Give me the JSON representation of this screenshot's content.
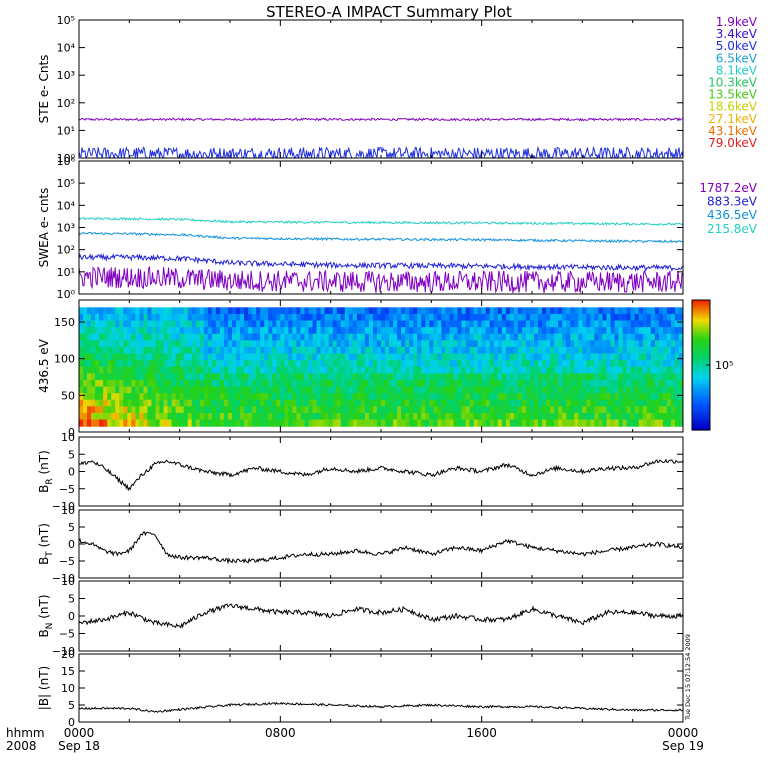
{
  "chart_data": {
    "type": "multi-panel",
    "title": "STEREO-A IMPACT Summary Plot",
    "x_axis": {
      "tick_labels": [
        "0000",
        "0800",
        "1600",
        "0000"
      ],
      "tick_hours": [
        0,
        8,
        16,
        24
      ],
      "date_labels": [
        "Sep 18",
        "",
        "",
        "Sep 19"
      ],
      "corner_labels": [
        "hhmm",
        "2008"
      ],
      "range_hours": [
        0,
        24
      ]
    },
    "timestamp": "Tue Dec 15 07:12:54 2009",
    "panels": [
      {
        "id": "ste",
        "ylabel": "STE e- Cnts",
        "scale": "log",
        "ylim": [
          1,
          100000
        ],
        "yticks": [
          1,
          10,
          100,
          1000,
          10000,
          100000
        ],
        "ytick_labels": [
          "10⁰",
          "10¹",
          "10²",
          "10³",
          "10⁴",
          "10⁵"
        ],
        "legend": [
          {
            "label": "1.9keV",
            "color": "#8000c0"
          },
          {
            "label": "3.4keV",
            "color": "#3b10d0"
          },
          {
            "label": "5.0keV",
            "color": "#2030e0"
          },
          {
            "label": "6.5keV",
            "color": "#1aa0dc"
          },
          {
            "label": "8.1keV",
            "color": "#20d0c8"
          },
          {
            "label": "10.3keV",
            "color": "#20c860"
          },
          {
            "label": "13.5keV",
            "color": "#48c818"
          },
          {
            "label": "18.6keV",
            "color": "#c8d000"
          },
          {
            "label": "27.1keV",
            "color": "#f0b000"
          },
          {
            "label": "43.1keV",
            "color": "#f07000"
          },
          {
            "label": "79.0keV",
            "color": "#e02020"
          }
        ],
        "series": [
          {
            "name": "1.9keV",
            "color": "#8000c0",
            "base": 25,
            "noise": 0.04
          },
          {
            "name": "3.4keV",
            "color": "#2030e0",
            "base": 1.4,
            "noise": 0.25
          }
        ]
      },
      {
        "id": "swea",
        "ylabel": "SWEA e- cnts",
        "scale": "log",
        "ylim": [
          1,
          1000000
        ],
        "yticks": [
          1,
          10,
          100,
          1000,
          10000,
          100000,
          1000000
        ],
        "ytick_labels": [
          "10⁰",
          "10¹",
          "10²",
          "10³",
          "10⁴",
          "10⁵",
          "10⁶"
        ],
        "legend": [
          {
            "label": "1787.2eV",
            "color": "#8000c0"
          },
          {
            "label": "883.3eV",
            "color": "#2020d8"
          },
          {
            "label": "436.5eV",
            "color": "#1090dc"
          },
          {
            "label": "215.8eV",
            "color": "#20d0c0"
          }
        ],
        "series": [
          {
            "name": "215.8eV",
            "color": "#20d0c0",
            "x": [
              0,
              2,
              4,
              6,
              10,
              16,
              20,
              24
            ],
            "y": [
              2500,
              2500,
              2300,
              1800,
              1700,
              1600,
              1500,
              1400
            ],
            "noise": 0.05
          },
          {
            "name": "436.5eV",
            "color": "#1090dc",
            "x": [
              0,
              2,
              4,
              6,
              10,
              16,
              20,
              24
            ],
            "y": [
              550,
              520,
              470,
              330,
              300,
              280,
              250,
              230
            ],
            "noise": 0.05
          },
          {
            "name": "883.3eV",
            "color": "#2020d8",
            "x": [
              0,
              2,
              4,
              6,
              10,
              16,
              20,
              24
            ],
            "y": [
              45,
              45,
              40,
              25,
              20,
              18,
              16,
              15
            ],
            "noise": 0.12
          },
          {
            "name": "1787.2eV",
            "color": "#8000c0",
            "x": [
              0,
              3,
              6,
              12,
              24
            ],
            "y": [
              6,
              5.5,
              4,
              3.5,
              3.5
            ],
            "noise": 0.5
          }
        ]
      },
      {
        "id": "pad",
        "ylabel": "436.5 eV",
        "type": "heatmap",
        "ylim": [
          0,
          180
        ],
        "yticks": [
          0,
          50,
          100,
          150
        ],
        "ytick_labels": [
          "0",
          "50",
          "100",
          "150"
        ],
        "colorbar_label": "10⁵",
        "colorbar_label_fraction": 0.5
      },
      {
        "id": "br",
        "ylabel": "B_R (nT)",
        "ylim": [
          -10,
          10
        ],
        "yticks": [
          -10,
          -5,
          0,
          5,
          10
        ],
        "ytick_labels": [
          "−10",
          "−5",
          "0",
          "5",
          "10"
        ],
        "series": [
          {
            "color": "#000000",
            "x": [
              0,
              0.5,
              1,
              1.5,
              2,
              2.5,
              3,
              3.5,
              4,
              5,
              6,
              7,
              8,
              9,
              10,
              11,
              12,
              13,
              14,
              15,
              16,
              17,
              18,
              19,
              20,
              21,
              22,
              23,
              24
            ],
            "y": [
              2,
              3,
              1,
              -2,
              -5,
              -1,
              2,
              3,
              2,
              0,
              -1,
              1,
              0,
              -1,
              1,
              0,
              1,
              0,
              -1,
              1,
              0,
              2,
              -1,
              1,
              0,
              1,
              1,
              3,
              3
            ],
            "noise": 0.6
          }
        ]
      },
      {
        "id": "bt",
        "ylabel": "B_T (nT)",
        "ylim": [
          -10,
          10
        ],
        "yticks": [
          -10,
          -5,
          0,
          5,
          10
        ],
        "ytick_labels": [
          "−10",
          "−5",
          "0",
          "5",
          "10"
        ],
        "series": [
          {
            "color": "#000000",
            "x": [
              0,
              0.5,
              1,
              1.5,
              2,
              2.5,
              3,
              3.5,
              4,
              5,
              6,
              7,
              8,
              9,
              10,
              11,
              12,
              13,
              14,
              15,
              16,
              17,
              18,
              19,
              20,
              21,
              22,
              23,
              24
            ],
            "y": [
              1,
              0,
              -2,
              -3,
              -2,
              3,
              3,
              -3,
              -4,
              -4,
              -5,
              -5,
              -4,
              -3,
              -3,
              -2,
              -3,
              -1,
              -3,
              -1,
              -2,
              1,
              -1,
              -2,
              -3,
              -2,
              -1,
              0,
              -1
            ],
            "noise": 0.6
          }
        ]
      },
      {
        "id": "bn",
        "ylabel": "B_N (nT)",
        "ylim": [
          -10,
          10
        ],
        "yticks": [
          -10,
          -5,
          0,
          5,
          10
        ],
        "ytick_labels": [
          "−10",
          "−5",
          "0",
          "5",
          "10"
        ],
        "series": [
          {
            "color": "#000000",
            "x": [
              0,
              1,
              2,
              3,
              4,
              5,
              6,
              7,
              8,
              9,
              10,
              11,
              12,
              13,
              14,
              15,
              16,
              17,
              18,
              19,
              20,
              21,
              22,
              23,
              24
            ],
            "y": [
              -2,
              -1,
              1,
              -2,
              -3,
              1,
              3,
              2,
              1,
              1,
              0,
              2,
              1,
              2,
              -1,
              0,
              -1,
              -1,
              2,
              0,
              -2,
              1,
              1,
              0,
              0
            ],
            "noise": 0.7
          }
        ]
      },
      {
        "id": "bmag",
        "ylabel": "|B| (nT)",
        "ylim": [
          0,
          20
        ],
        "yticks": [
          0,
          5,
          10,
          15,
          20
        ],
        "ytick_labels": [
          "0",
          "5",
          "10",
          "15",
          "20"
        ],
        "series": [
          {
            "color": "#000000",
            "x": [
              0,
              2,
              3,
              6,
              8,
              10,
              12,
              14,
              16,
              18,
              20,
              22,
              24
            ],
            "y": [
              4,
              4,
              3,
              5,
              5.5,
              5,
              4.5,
              5,
              4.5,
              4.5,
              4,
              3.5,
              3.5
            ],
            "noise": 0.3
          }
        ]
      }
    ]
  }
}
